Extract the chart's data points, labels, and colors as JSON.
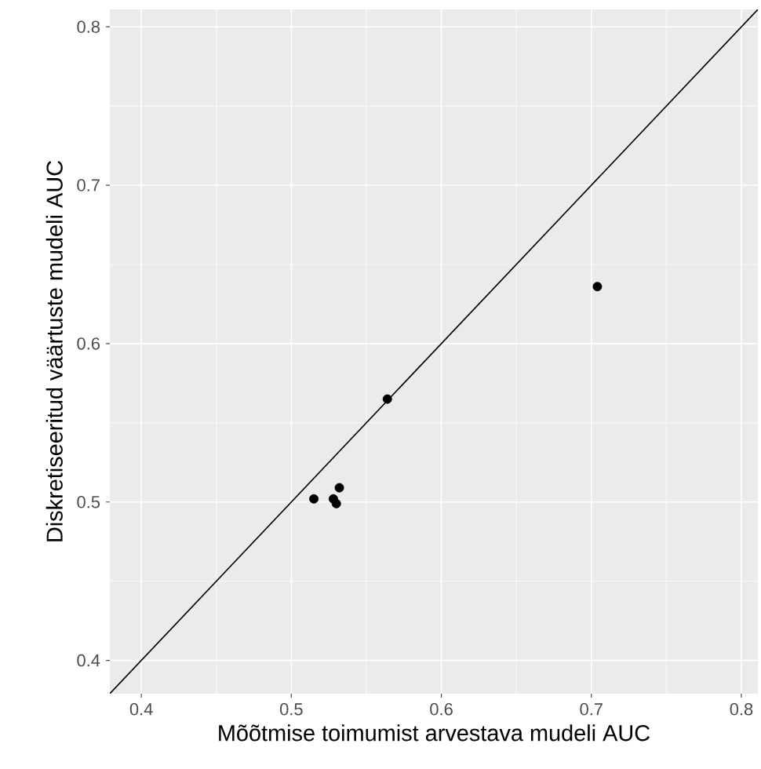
{
  "chart_data": {
    "type": "scatter",
    "xlabel": "Mõõtmise toimumist arvestava mudeli AUC",
    "ylabel": "Diskretiseeritud väärtuste mudeli AUC",
    "xlim": [
      0.379,
      0.811
    ],
    "ylim": [
      0.379,
      0.811
    ],
    "xticks": [
      0.4,
      0.5,
      0.6,
      0.7,
      0.8
    ],
    "yticks": [
      0.4,
      0.5,
      0.6,
      0.7,
      0.8
    ],
    "grid": true,
    "series": [
      {
        "marker": "circle",
        "color": "#000000",
        "x": [
          0.515,
          0.528,
          0.532,
          0.53,
          0.564,
          0.704
        ],
        "values": [
          0.502,
          0.502,
          0.509,
          0.499,
          0.565,
          0.636
        ]
      },
      {
        "type": "line",
        "marker": "none",
        "color": "#000000",
        "x": [
          0.379,
          0.811
        ],
        "values": [
          0.379,
          0.811
        ]
      }
    ]
  }
}
